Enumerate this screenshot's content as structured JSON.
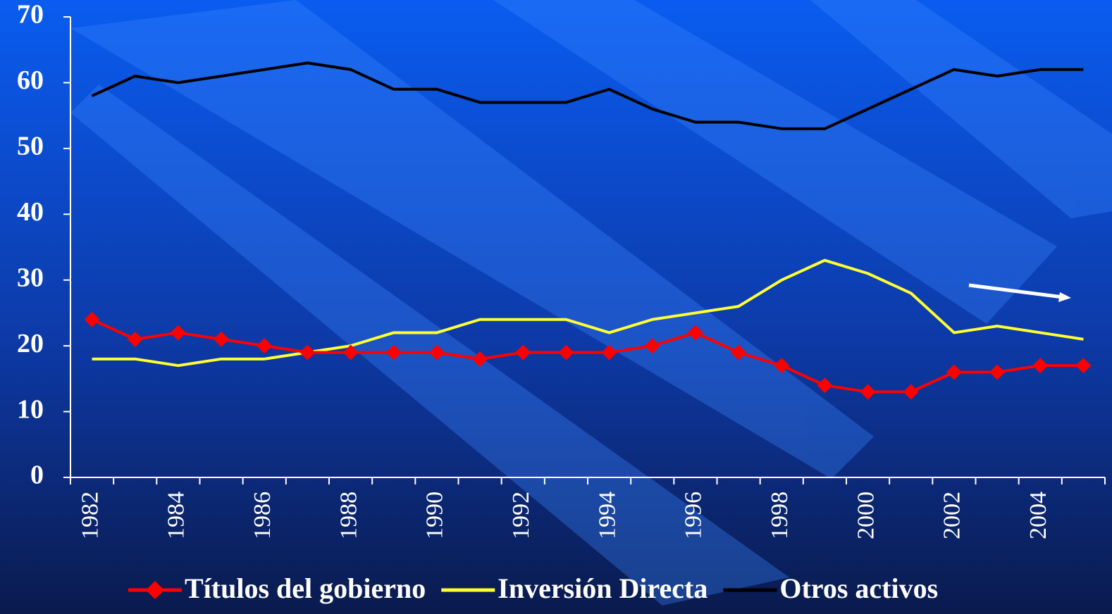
{
  "chart_data": {
    "type": "line",
    "categories": [
      "1982",
      null,
      "1984",
      null,
      "1986",
      null,
      "1988",
      null,
      "1990",
      null,
      "1992",
      null,
      "1994",
      null,
      "1996",
      null,
      "1998",
      null,
      "2000",
      null,
      "2002",
      null,
      "2004",
      null
    ],
    "series": [
      {
        "name": "Títulos del gobierno",
        "color": "#ff0000",
        "marker": "diamond",
        "values": [
          24,
          21,
          22,
          21,
          20,
          19,
          19,
          19,
          19,
          18,
          19,
          19,
          19,
          20,
          22,
          19,
          17,
          14,
          13,
          13,
          16,
          16,
          17,
          17
        ]
      },
      {
        "name": "Inversión Directa",
        "color": "#ffff33",
        "values": [
          18,
          18,
          17,
          18,
          18,
          19,
          20,
          22,
          22,
          24,
          24,
          24,
          22,
          24,
          25,
          26,
          30,
          33,
          31,
          28,
          22,
          23,
          22,
          21
        ]
      },
      {
        "name": "Otros activos",
        "color": "#000000",
        "values": [
          58,
          61,
          60,
          61,
          62,
          63,
          62,
          59,
          59,
          57,
          57,
          57,
          59,
          56,
          54,
          54,
          53,
          53,
          56,
          59,
          62,
          61,
          62,
          62
        ]
      }
    ],
    "ylim": [
      0,
      70
    ],
    "yticks": [
      0,
      10,
      20,
      30,
      40,
      50,
      60,
      70
    ],
    "legend": "bottom"
  }
}
